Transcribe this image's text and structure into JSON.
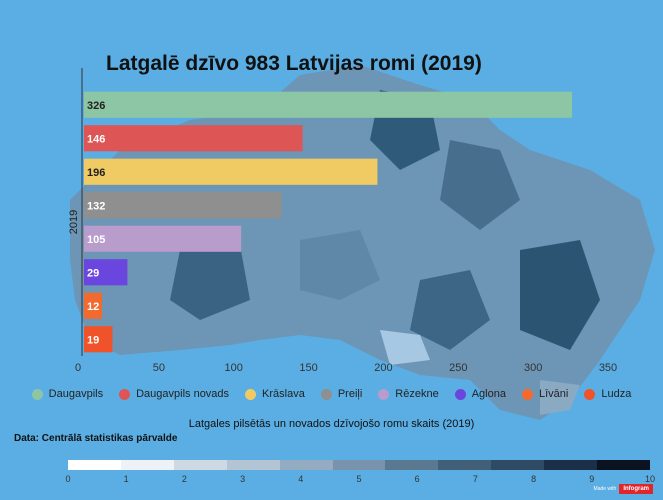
{
  "title": "Latgalē dzīvo 983 Latvijas romi (2019)",
  "subtitle": "Latgales pilsētās un novados dzīvojošo romu skaits (2019)",
  "source": "Data: Centrālā statistikas pārvalde",
  "badge": {
    "made_with": "Made with",
    "brand": "Infogram"
  },
  "scale_legend": {
    "labels": [
      "0",
      "1",
      "2",
      "3",
      "4",
      "5",
      "6",
      "7",
      "8",
      "9",
      "10"
    ],
    "colors": [
      "#ffffff",
      "#eef2f6",
      "#cfd9e3",
      "#b3c5d5",
      "#94acc2",
      "#7893ab",
      "#5b7891",
      "#425f78",
      "#2f4b64",
      "#1b3048",
      "#0b1220"
    ]
  },
  "chart_data": {
    "type": "bar",
    "orientation": "horizontal",
    "title": "Latgalē dzīvo 983 Latvijas romi (2019)",
    "ylabel": "2019",
    "xlabel": "",
    "xlim": [
      0,
      350
    ],
    "xticks": [
      0,
      50,
      100,
      150,
      200,
      250,
      300,
      350
    ],
    "grid": false,
    "legend_position": "bottom",
    "series": [
      {
        "name": "Daugavpils",
        "value": 326,
        "color": "#8dc6a4"
      },
      {
        "name": "Daugavpils novads",
        "value": 146,
        "color": "#dd5555"
      },
      {
        "name": "Krāslava",
        "value": 196,
        "color": "#f0cb63"
      },
      {
        "name": "Preiļi",
        "value": 132,
        "color": "#8f8f8f"
      },
      {
        "name": "Rēzekne",
        "value": 105,
        "color": "#b89ccc"
      },
      {
        "name": "Aglona",
        "value": 29,
        "color": "#6a46de"
      },
      {
        "name": "Līvāni",
        "value": 12,
        "color": "#f26a2e"
      },
      {
        "name": "Ludza",
        "value": 19,
        "color": "#f0522a"
      }
    ]
  }
}
